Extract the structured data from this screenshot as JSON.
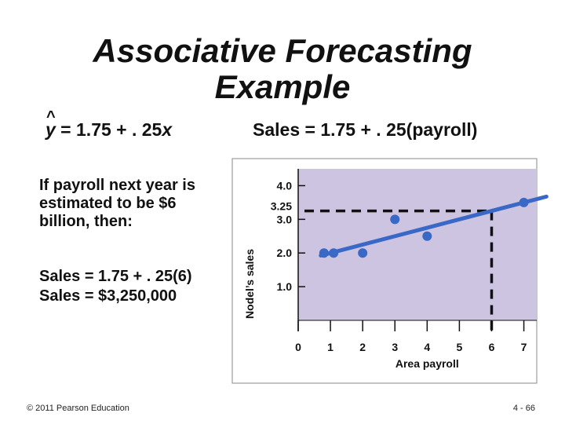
{
  "slide": {
    "title_line1": "Associative Forecasting",
    "title_line2": "Example",
    "equation_y": "y",
    "equation_hat": "^",
    "equation_left_rest": " = 1.75 + . 25",
    "equation_left_var": "x",
    "equation_right": "Sales = 1.75 + . 25(payroll)",
    "intro_text": "If payroll next year is estimated to be $6 billion, then:",
    "calc_line1": "Sales = 1.75 + . 25(6)",
    "calc_line2": "Sales = $3,250,000",
    "footer_left": "© 2011 Pearson Education",
    "footer_right": "4 - 66"
  },
  "colors": {
    "plot_background": "#ccc4e0",
    "line_and_points": "#3a68c6",
    "dashed_guides": "#111111"
  },
  "chart_data": {
    "type": "scatter",
    "xlabel": "Area payroll",
    "ylabel": "Nodel’s sales",
    "x_ticks": [
      0,
      1,
      2,
      3,
      4,
      5,
      6,
      7
    ],
    "x_tick_labels": [
      "0",
      "1",
      "2",
      "3",
      "4",
      "5",
      "6",
      "7"
    ],
    "y_ticks": [
      1.0,
      2.0,
      3.0,
      3.25,
      4.0
    ],
    "y_tick_labels": [
      "1.0",
      "2.0",
      "3.0",
      "3.25",
      "4.0"
    ],
    "xlim": [
      0,
      7.4
    ],
    "ylim": [
      0,
      4.5
    ],
    "grid": false,
    "points": [
      {
        "x": 0.8,
        "y": 2.0
      },
      {
        "x": 1.1,
        "y": 2.0
      },
      {
        "x": 2.0,
        "y": 2.0
      },
      {
        "x": 3.0,
        "y": 3.0
      },
      {
        "x": 4.0,
        "y": 2.5
      },
      {
        "x": 7.0,
        "y": 3.5
      }
    ],
    "regression_line": {
      "intercept": 1.75,
      "slope": 0.25,
      "x_range": [
        0.7,
        7.7
      ]
    },
    "forecast": {
      "x": 6,
      "y": 3.25
    }
  }
}
